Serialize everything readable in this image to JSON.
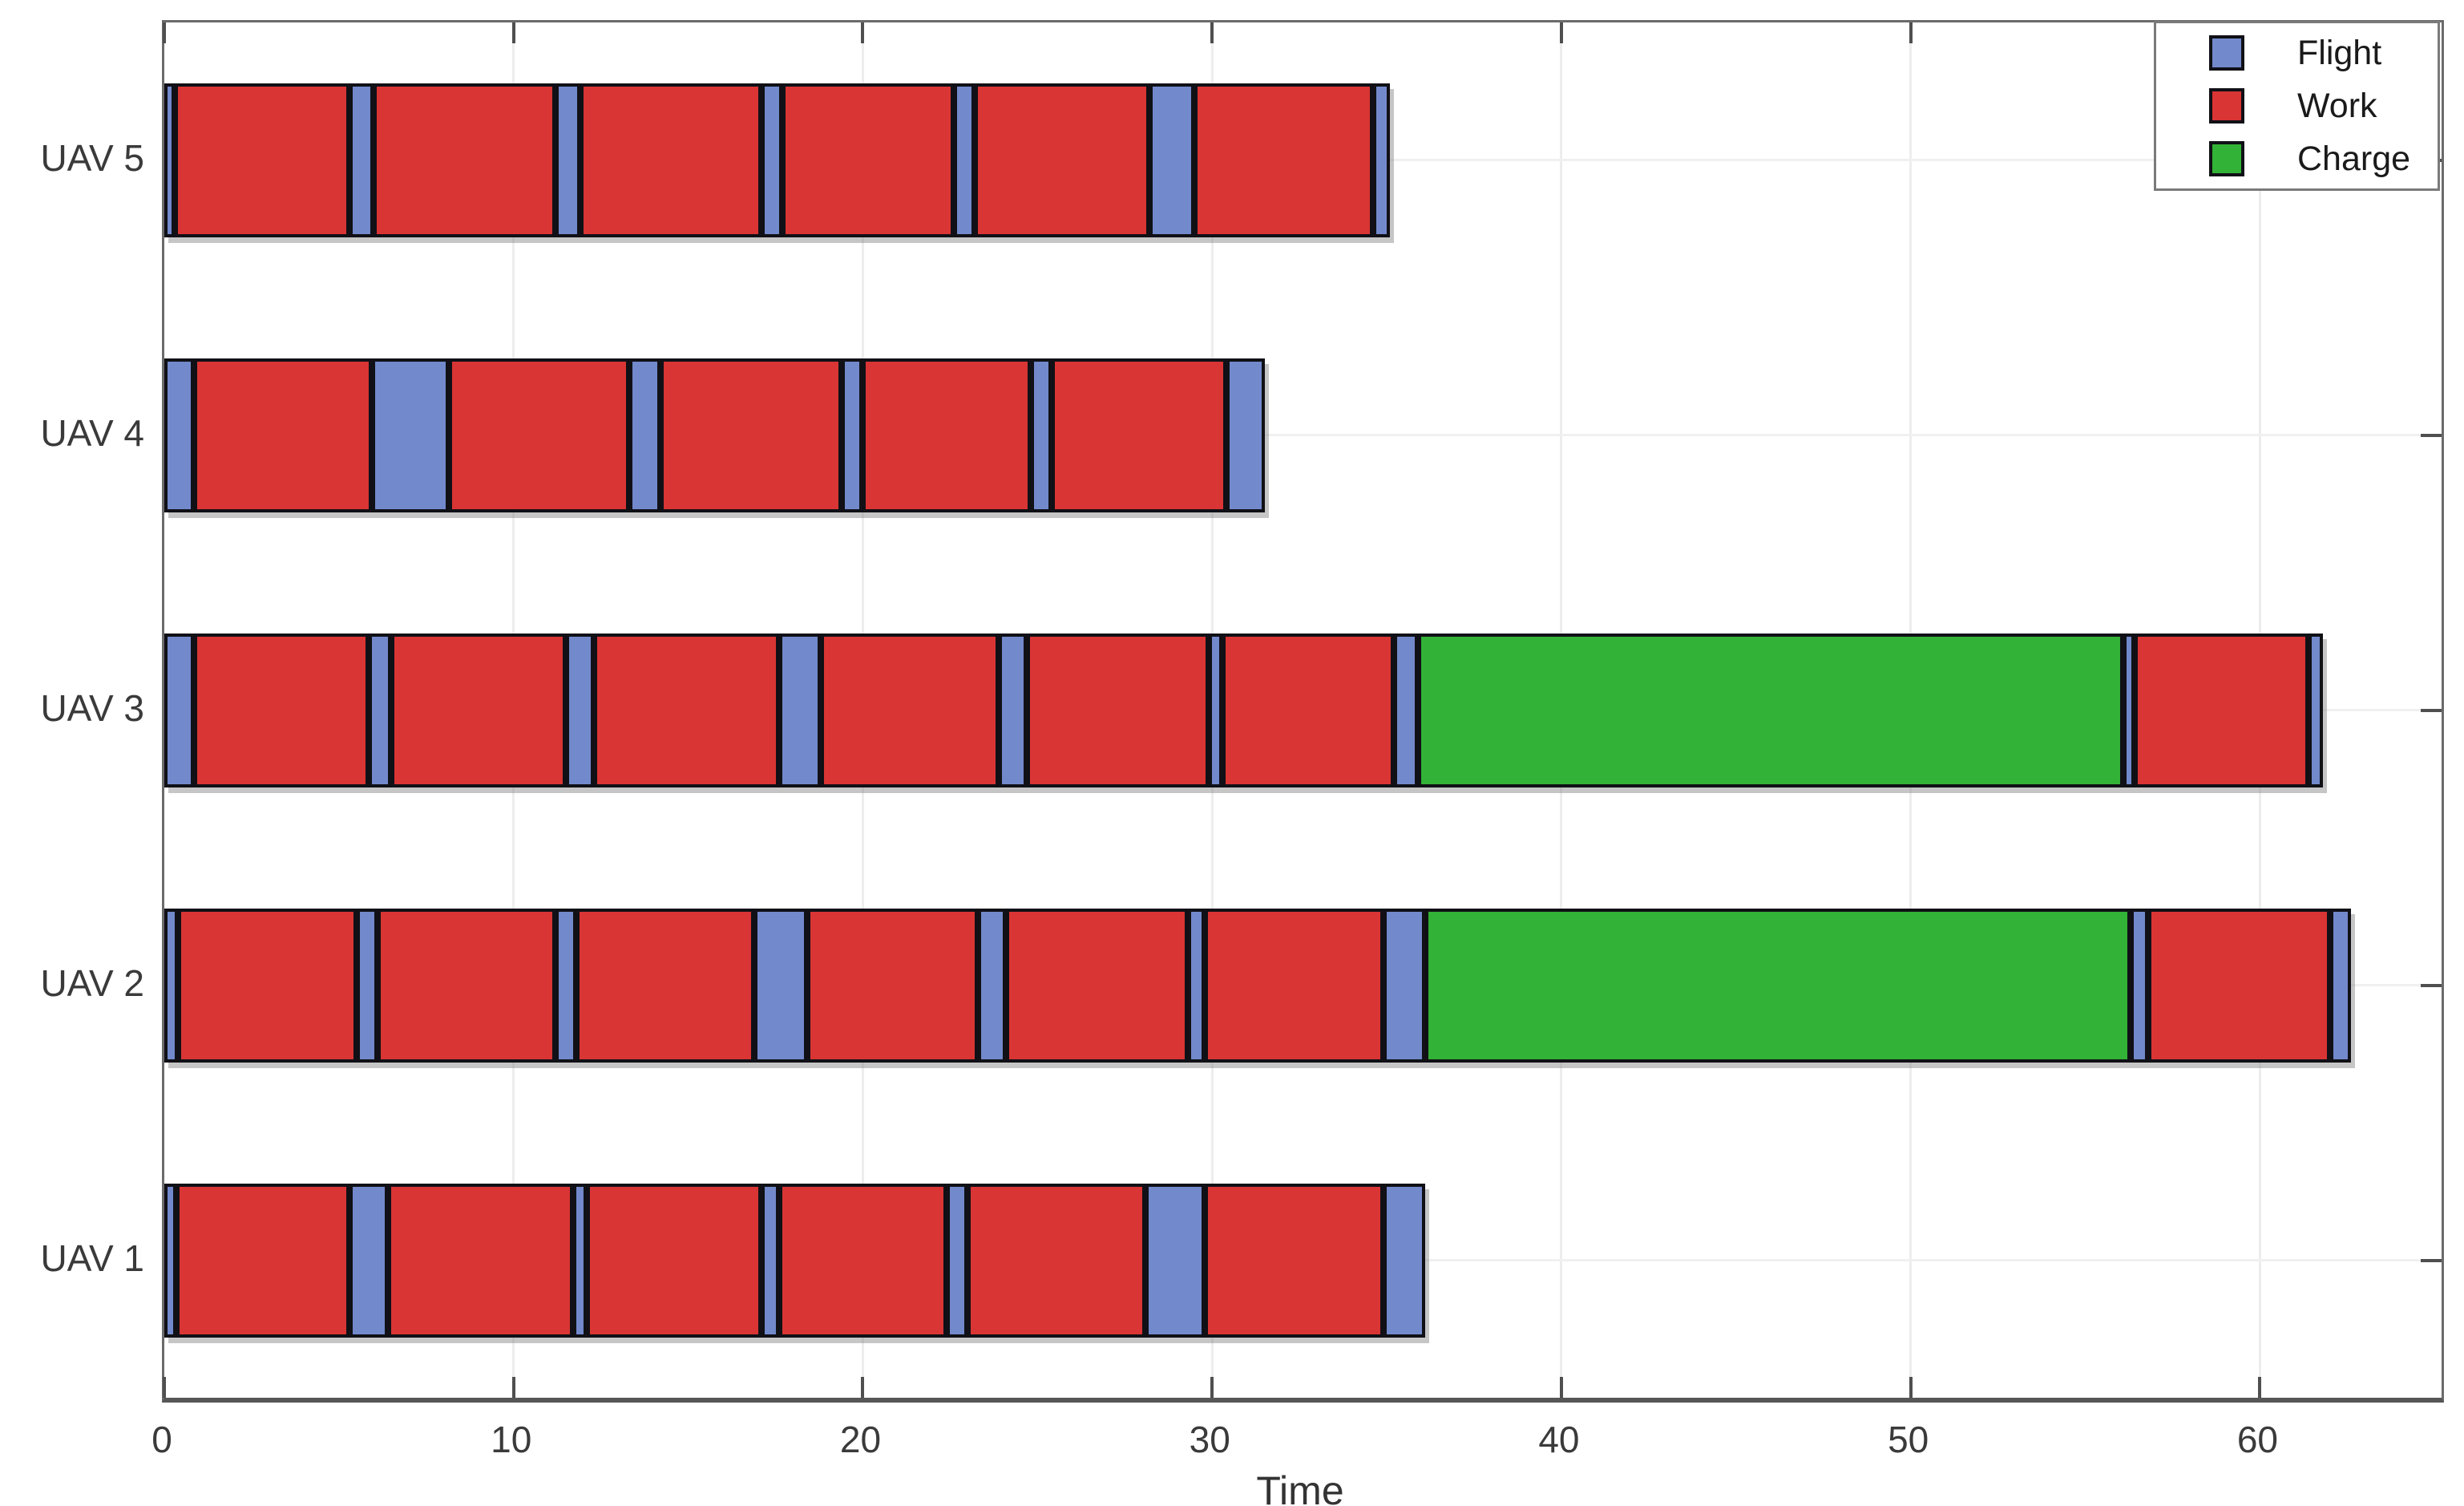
{
  "chart_data": {
    "type": "gantt",
    "xlabel": "Time",
    "xlim": [
      0,
      65.2
    ],
    "x_ticks": [
      0,
      10,
      20,
      30,
      40,
      50,
      60
    ],
    "grid": "on",
    "legend_position": "top-right",
    "legend": [
      {
        "label": "Flight",
        "color": "#7289CB"
      },
      {
        "label": "Work",
        "color": "#D93534"
      },
      {
        "label": "Charge",
        "color": "#32B236"
      }
    ],
    "colors": {
      "Flight": "#7289CB",
      "Work": "#D93534",
      "Charge": "#32B236"
    },
    "y_categories_top_to_bottom": [
      "UAV 5",
      "UAV 4",
      "UAV 3",
      "UAV 2",
      "UAV 1"
    ],
    "rows": [
      {
        "label": "UAV 5",
        "segments": [
          {
            "type": "Flight",
            "start": 0,
            "end": 0.3
          },
          {
            "type": "Work",
            "start": 0.3,
            "end": 5.3
          },
          {
            "type": "Flight",
            "start": 5.3,
            "end": 6.0
          },
          {
            "type": "Work",
            "start": 6.0,
            "end": 11.2
          },
          {
            "type": "Flight",
            "start": 11.2,
            "end": 11.9
          },
          {
            "type": "Work",
            "start": 11.9,
            "end": 17.1
          },
          {
            "type": "Flight",
            "start": 17.1,
            "end": 17.7
          },
          {
            "type": "Work",
            "start": 17.7,
            "end": 22.6
          },
          {
            "type": "Flight",
            "start": 22.6,
            "end": 23.2
          },
          {
            "type": "Work",
            "start": 23.2,
            "end": 28.2
          },
          {
            "type": "Flight",
            "start": 28.2,
            "end": 29.5
          },
          {
            "type": "Work",
            "start": 29.5,
            "end": 34.6
          },
          {
            "type": "Flight",
            "start": 34.6,
            "end": 35.1
          }
        ]
      },
      {
        "label": "UAV 4",
        "segments": [
          {
            "type": "Flight",
            "start": 0,
            "end": 0.85
          },
          {
            "type": "Work",
            "start": 0.85,
            "end": 5.95
          },
          {
            "type": "Flight",
            "start": 5.95,
            "end": 8.15
          },
          {
            "type": "Work",
            "start": 8.15,
            "end": 13.3
          },
          {
            "type": "Flight",
            "start": 13.3,
            "end": 14.2
          },
          {
            "type": "Work",
            "start": 14.2,
            "end": 19.4
          },
          {
            "type": "Flight",
            "start": 19.4,
            "end": 20.0
          },
          {
            "type": "Work",
            "start": 20.0,
            "end": 24.8
          },
          {
            "type": "Flight",
            "start": 24.8,
            "end": 25.4
          },
          {
            "type": "Work",
            "start": 25.4,
            "end": 30.4
          },
          {
            "type": "Flight",
            "start": 30.4,
            "end": 31.5
          }
        ]
      },
      {
        "label": "UAV 3",
        "segments": [
          {
            "type": "Flight",
            "start": 0,
            "end": 0.85
          },
          {
            "type": "Work",
            "start": 0.85,
            "end": 5.85
          },
          {
            "type": "Flight",
            "start": 5.85,
            "end": 6.5
          },
          {
            "type": "Work",
            "start": 6.5,
            "end": 11.5
          },
          {
            "type": "Flight",
            "start": 11.5,
            "end": 12.3
          },
          {
            "type": "Work",
            "start": 12.3,
            "end": 17.6
          },
          {
            "type": "Flight",
            "start": 17.6,
            "end": 18.8
          },
          {
            "type": "Work",
            "start": 18.8,
            "end": 23.9
          },
          {
            "type": "Flight",
            "start": 23.9,
            "end": 24.7
          },
          {
            "type": "Work",
            "start": 24.7,
            "end": 29.9
          },
          {
            "type": "Flight",
            "start": 29.9,
            "end": 30.3
          },
          {
            "type": "Work",
            "start": 30.3,
            "end": 35.2
          },
          {
            "type": "Flight",
            "start": 35.2,
            "end": 35.9
          },
          {
            "type": "Charge",
            "start": 35.9,
            "end": 56.1
          },
          {
            "type": "Flight",
            "start": 56.1,
            "end": 56.4
          },
          {
            "type": "Work",
            "start": 56.4,
            "end": 61.4
          },
          {
            "type": "Flight",
            "start": 61.4,
            "end": 61.8
          }
        ]
      },
      {
        "label": "UAV 2",
        "segments": [
          {
            "type": "Flight",
            "start": 0,
            "end": 0.4
          },
          {
            "type": "Work",
            "start": 0.4,
            "end": 5.5
          },
          {
            "type": "Flight",
            "start": 5.5,
            "end": 6.1
          },
          {
            "type": "Work",
            "start": 6.1,
            "end": 11.2
          },
          {
            "type": "Flight",
            "start": 11.2,
            "end": 11.8
          },
          {
            "type": "Work",
            "start": 11.8,
            "end": 16.9
          },
          {
            "type": "Flight",
            "start": 16.9,
            "end": 18.4
          },
          {
            "type": "Work",
            "start": 18.4,
            "end": 23.3
          },
          {
            "type": "Flight",
            "start": 23.3,
            "end": 24.1
          },
          {
            "type": "Work",
            "start": 24.1,
            "end": 29.3
          },
          {
            "type": "Flight",
            "start": 29.3,
            "end": 29.8
          },
          {
            "type": "Work",
            "start": 29.8,
            "end": 34.9
          },
          {
            "type": "Flight",
            "start": 34.9,
            "end": 36.1
          },
          {
            "type": "Charge",
            "start": 36.1,
            "end": 56.3
          },
          {
            "type": "Flight",
            "start": 56.3,
            "end": 56.8
          },
          {
            "type": "Work",
            "start": 56.8,
            "end": 62.0
          },
          {
            "type": "Flight",
            "start": 62.0,
            "end": 62.6
          }
        ]
      },
      {
        "label": "UAV 1",
        "segments": [
          {
            "type": "Flight",
            "start": 0,
            "end": 0.35
          },
          {
            "type": "Work",
            "start": 0.35,
            "end": 5.3
          },
          {
            "type": "Flight",
            "start": 5.3,
            "end": 6.4
          },
          {
            "type": "Work",
            "start": 6.4,
            "end": 11.7
          },
          {
            "type": "Flight",
            "start": 11.7,
            "end": 12.1
          },
          {
            "type": "Work",
            "start": 12.1,
            "end": 17.1
          },
          {
            "type": "Flight",
            "start": 17.1,
            "end": 17.6
          },
          {
            "type": "Work",
            "start": 17.6,
            "end": 22.4
          },
          {
            "type": "Flight",
            "start": 22.4,
            "end": 23.0
          },
          {
            "type": "Work",
            "start": 23.0,
            "end": 28.1
          },
          {
            "type": "Flight",
            "start": 28.1,
            "end": 29.8
          },
          {
            "type": "Work",
            "start": 29.8,
            "end": 34.9
          },
          {
            "type": "Flight",
            "start": 34.9,
            "end": 36.1
          }
        ]
      }
    ]
  }
}
